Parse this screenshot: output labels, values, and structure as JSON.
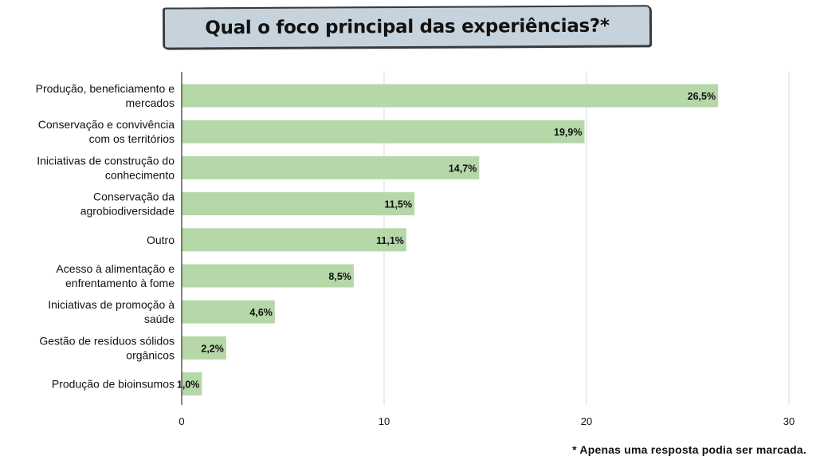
{
  "title": "Qual o foco principal das experiências?*",
  "footnote": "* Apenas uma resposta podia ser marcada.",
  "colors": {
    "bar": "#b6d7a8",
    "grid": "#d9d9d9",
    "axis": "#333333",
    "text": "#111111"
  },
  "chart_data": {
    "type": "bar",
    "orientation": "horizontal",
    "categories": [
      [
        "Produção, beneficiamento e",
        "mercados"
      ],
      [
        "Conservação e convivência",
        "com os territórios"
      ],
      [
        "Iniciativas de construção do",
        "conhecimento"
      ],
      [
        "Conservação da",
        "agrobiodiversidade"
      ],
      [
        "Outro"
      ],
      [
        "Acesso à alimentação e",
        "enfrentamento à fome"
      ],
      [
        "Iniciativas de promoção à",
        "saúde"
      ],
      [
        "Gestão de resíduos sólidos",
        "orgânicos"
      ],
      [
        "Produção de bioinsumos"
      ]
    ],
    "values": [
      26.5,
      19.9,
      14.7,
      11.5,
      11.1,
      8.5,
      4.6,
      2.2,
      1.0
    ],
    "data_labels": [
      "26,5%",
      "19,9%",
      "14,7%",
      "11,5%",
      "11,1%",
      "8,5%",
      "4,6%",
      "2,2%",
      "1,0%"
    ],
    "xlim": [
      0,
      30
    ],
    "xticks": [
      0,
      10,
      20,
      30
    ],
    "grid": true,
    "legend": "none"
  }
}
